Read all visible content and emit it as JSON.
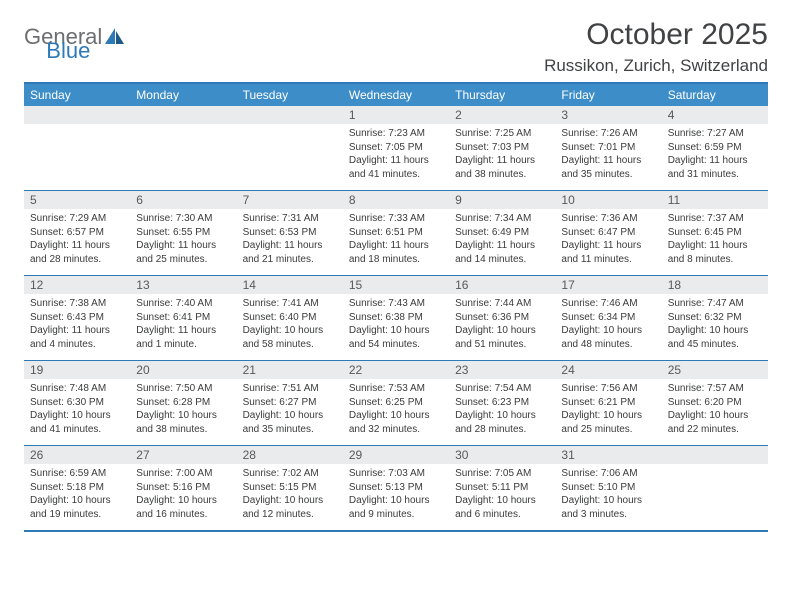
{
  "logo": {
    "part1": "General",
    "part2": "Blue"
  },
  "title": "October 2025",
  "location": "Russikon, Zurich, Switzerland",
  "theme": {
    "header_bg": "#3d8dc9",
    "border_color": "#2d7ab7",
    "daynum_bg": "#e9ebec",
    "text_color": "#3a3b3c",
    "logo_gray": "#6d6e70",
    "logo_blue": "#2d7ab7"
  },
  "day_headers": [
    "Sunday",
    "Monday",
    "Tuesday",
    "Wednesday",
    "Thursday",
    "Friday",
    "Saturday"
  ],
  "weeks": [
    [
      {
        "day": "",
        "sunrise": "",
        "sunset": "",
        "daylight": ""
      },
      {
        "day": "",
        "sunrise": "",
        "sunset": "",
        "daylight": ""
      },
      {
        "day": "",
        "sunrise": "",
        "sunset": "",
        "daylight": ""
      },
      {
        "day": "1",
        "sunrise": "Sunrise: 7:23 AM",
        "sunset": "Sunset: 7:05 PM",
        "daylight": "Daylight: 11 hours and 41 minutes."
      },
      {
        "day": "2",
        "sunrise": "Sunrise: 7:25 AM",
        "sunset": "Sunset: 7:03 PM",
        "daylight": "Daylight: 11 hours and 38 minutes."
      },
      {
        "day": "3",
        "sunrise": "Sunrise: 7:26 AM",
        "sunset": "Sunset: 7:01 PM",
        "daylight": "Daylight: 11 hours and 35 minutes."
      },
      {
        "day": "4",
        "sunrise": "Sunrise: 7:27 AM",
        "sunset": "Sunset: 6:59 PM",
        "daylight": "Daylight: 11 hours and 31 minutes."
      }
    ],
    [
      {
        "day": "5",
        "sunrise": "Sunrise: 7:29 AM",
        "sunset": "Sunset: 6:57 PM",
        "daylight": "Daylight: 11 hours and 28 minutes."
      },
      {
        "day": "6",
        "sunrise": "Sunrise: 7:30 AM",
        "sunset": "Sunset: 6:55 PM",
        "daylight": "Daylight: 11 hours and 25 minutes."
      },
      {
        "day": "7",
        "sunrise": "Sunrise: 7:31 AM",
        "sunset": "Sunset: 6:53 PM",
        "daylight": "Daylight: 11 hours and 21 minutes."
      },
      {
        "day": "8",
        "sunrise": "Sunrise: 7:33 AM",
        "sunset": "Sunset: 6:51 PM",
        "daylight": "Daylight: 11 hours and 18 minutes."
      },
      {
        "day": "9",
        "sunrise": "Sunrise: 7:34 AM",
        "sunset": "Sunset: 6:49 PM",
        "daylight": "Daylight: 11 hours and 14 minutes."
      },
      {
        "day": "10",
        "sunrise": "Sunrise: 7:36 AM",
        "sunset": "Sunset: 6:47 PM",
        "daylight": "Daylight: 11 hours and 11 minutes."
      },
      {
        "day": "11",
        "sunrise": "Sunrise: 7:37 AM",
        "sunset": "Sunset: 6:45 PM",
        "daylight": "Daylight: 11 hours and 8 minutes."
      }
    ],
    [
      {
        "day": "12",
        "sunrise": "Sunrise: 7:38 AM",
        "sunset": "Sunset: 6:43 PM",
        "daylight": "Daylight: 11 hours and 4 minutes."
      },
      {
        "day": "13",
        "sunrise": "Sunrise: 7:40 AM",
        "sunset": "Sunset: 6:41 PM",
        "daylight": "Daylight: 11 hours and 1 minute."
      },
      {
        "day": "14",
        "sunrise": "Sunrise: 7:41 AM",
        "sunset": "Sunset: 6:40 PM",
        "daylight": "Daylight: 10 hours and 58 minutes."
      },
      {
        "day": "15",
        "sunrise": "Sunrise: 7:43 AM",
        "sunset": "Sunset: 6:38 PM",
        "daylight": "Daylight: 10 hours and 54 minutes."
      },
      {
        "day": "16",
        "sunrise": "Sunrise: 7:44 AM",
        "sunset": "Sunset: 6:36 PM",
        "daylight": "Daylight: 10 hours and 51 minutes."
      },
      {
        "day": "17",
        "sunrise": "Sunrise: 7:46 AM",
        "sunset": "Sunset: 6:34 PM",
        "daylight": "Daylight: 10 hours and 48 minutes."
      },
      {
        "day": "18",
        "sunrise": "Sunrise: 7:47 AM",
        "sunset": "Sunset: 6:32 PM",
        "daylight": "Daylight: 10 hours and 45 minutes."
      }
    ],
    [
      {
        "day": "19",
        "sunrise": "Sunrise: 7:48 AM",
        "sunset": "Sunset: 6:30 PM",
        "daylight": "Daylight: 10 hours and 41 minutes."
      },
      {
        "day": "20",
        "sunrise": "Sunrise: 7:50 AM",
        "sunset": "Sunset: 6:28 PM",
        "daylight": "Daylight: 10 hours and 38 minutes."
      },
      {
        "day": "21",
        "sunrise": "Sunrise: 7:51 AM",
        "sunset": "Sunset: 6:27 PM",
        "daylight": "Daylight: 10 hours and 35 minutes."
      },
      {
        "day": "22",
        "sunrise": "Sunrise: 7:53 AM",
        "sunset": "Sunset: 6:25 PM",
        "daylight": "Daylight: 10 hours and 32 minutes."
      },
      {
        "day": "23",
        "sunrise": "Sunrise: 7:54 AM",
        "sunset": "Sunset: 6:23 PM",
        "daylight": "Daylight: 10 hours and 28 minutes."
      },
      {
        "day": "24",
        "sunrise": "Sunrise: 7:56 AM",
        "sunset": "Sunset: 6:21 PM",
        "daylight": "Daylight: 10 hours and 25 minutes."
      },
      {
        "day": "25",
        "sunrise": "Sunrise: 7:57 AM",
        "sunset": "Sunset: 6:20 PM",
        "daylight": "Daylight: 10 hours and 22 minutes."
      }
    ],
    [
      {
        "day": "26",
        "sunrise": "Sunrise: 6:59 AM",
        "sunset": "Sunset: 5:18 PM",
        "daylight": "Daylight: 10 hours and 19 minutes."
      },
      {
        "day": "27",
        "sunrise": "Sunrise: 7:00 AM",
        "sunset": "Sunset: 5:16 PM",
        "daylight": "Daylight: 10 hours and 16 minutes."
      },
      {
        "day": "28",
        "sunrise": "Sunrise: 7:02 AM",
        "sunset": "Sunset: 5:15 PM",
        "daylight": "Daylight: 10 hours and 12 minutes."
      },
      {
        "day": "29",
        "sunrise": "Sunrise: 7:03 AM",
        "sunset": "Sunset: 5:13 PM",
        "daylight": "Daylight: 10 hours and 9 minutes."
      },
      {
        "day": "30",
        "sunrise": "Sunrise: 7:05 AM",
        "sunset": "Sunset: 5:11 PM",
        "daylight": "Daylight: 10 hours and 6 minutes."
      },
      {
        "day": "31",
        "sunrise": "Sunrise: 7:06 AM",
        "sunset": "Sunset: 5:10 PM",
        "daylight": "Daylight: 10 hours and 3 minutes."
      },
      {
        "day": "",
        "sunrise": "",
        "sunset": "",
        "daylight": ""
      }
    ]
  ]
}
